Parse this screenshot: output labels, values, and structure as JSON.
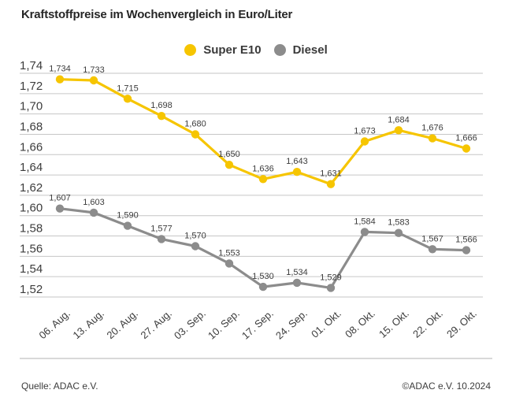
{
  "title": "Kraftstoffpreise im Wochenvergleich in Euro/Liter",
  "footer": {
    "source": "Quelle: ADAC e.V.",
    "copyright": "©ADAC e.V. 10.2024"
  },
  "chart_data": {
    "type": "line",
    "title": "Kraftstoffpreise im Wochenvergleich in Euro/Liter",
    "categories": [
      "06. Aug.",
      "13. Aug.",
      "20. Aug.",
      "27. Aug.",
      "03. Sep.",
      "10. Sep.",
      "17. Sep.",
      "24. Sep.",
      "01. Okt.",
      "08. Okt.",
      "15. Okt.",
      "22. Okt.",
      "29. Okt."
    ],
    "series": [
      {
        "name": "Super E10",
        "color": "#F6C500",
        "values": [
          1.734,
          1.733,
          1.715,
          1.698,
          1.68,
          1.65,
          1.636,
          1.643,
          1.631,
          1.673,
          1.684,
          1.676,
          1.666
        ]
      },
      {
        "name": "Diesel",
        "color": "#8C8C8C",
        "values": [
          1.607,
          1.603,
          1.59,
          1.577,
          1.57,
          1.553,
          1.53,
          1.534,
          1.529,
          1.584,
          1.583,
          1.567,
          1.566
        ]
      }
    ],
    "ylim": [
      1.52,
      1.74
    ],
    "ytick_step": 0.02,
    "grid": true,
    "legend_position": "top-center",
    "decimal_separator": ",",
    "grid_color": "#c6c6c6",
    "axis_text_color": "#3c3c3c",
    "label_text_color": "#3c3c3c"
  }
}
